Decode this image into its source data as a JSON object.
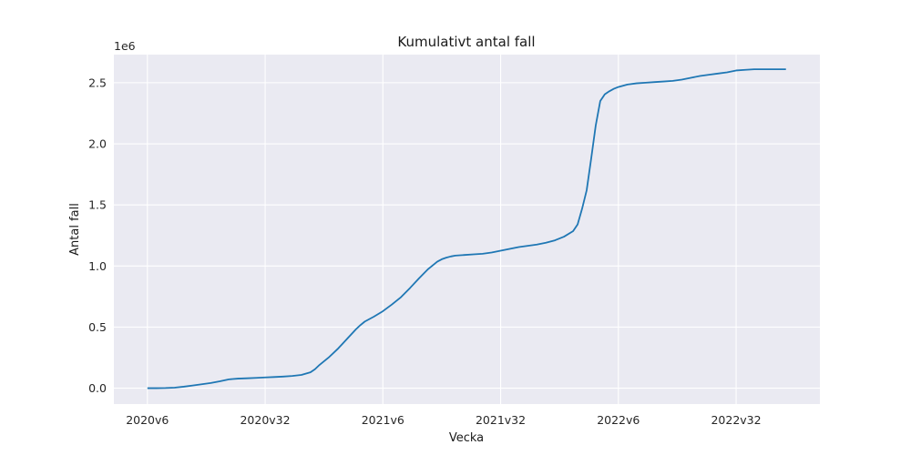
{
  "chart_data": {
    "type": "line",
    "title": "Kumulativt antal fall",
    "xlabel": "Vecka",
    "ylabel": "Antal fall",
    "y_scale_label": "1e6",
    "y_multiplier": 1000000,
    "x_ticks": [
      {
        "label": "2020v6",
        "week_index": 0
      },
      {
        "label": "2020v32",
        "week_index": 26
      },
      {
        "label": "2021v6",
        "week_index": 52
      },
      {
        "label": "2021v32",
        "week_index": 78
      },
      {
        "label": "2022v6",
        "week_index": 104
      },
      {
        "label": "2022v32",
        "week_index": 130
      }
    ],
    "y_ticks": [
      0.0,
      0.5,
      1.0,
      1.5,
      2.0,
      2.5
    ],
    "y_tick_labels": [
      "0.0",
      "0.5",
      "1.0",
      "1.5",
      "2.0",
      "2.5"
    ],
    "xlim": [
      -7.4,
      148.5
    ],
    "ylim": [
      -0.13,
      2.73
    ],
    "grid": true,
    "legend": "none",
    "line_color": "#1f77b4",
    "background_color": "#eaeaf2",
    "series": [
      {
        "x": [
          0,
          2,
          4,
          6,
          8,
          10,
          12,
          14,
          16,
          18,
          20,
          22,
          24,
          26,
          28,
          30,
          32,
          34,
          36,
          37,
          38,
          40,
          42,
          43,
          44,
          45,
          46,
          47,
          48,
          50,
          52,
          54,
          56,
          58,
          60,
          62,
          64,
          65,
          66,
          67,
          68,
          70,
          72,
          74,
          76,
          78,
          80,
          82,
          84,
          86,
          88,
          90,
          92,
          94,
          95,
          96,
          97,
          98,
          99,
          100,
          101,
          102,
          103,
          104,
          105,
          106,
          108,
          110,
          112,
          114,
          116,
          118,
          120,
          122,
          124,
          126,
          128,
          130,
          132,
          134,
          136,
          137,
          138,
          140,
          141
        ],
        "y": [
          0.0,
          0.0,
          0.001,
          0.004,
          0.012,
          0.022,
          0.032,
          0.042,
          0.056,
          0.072,
          0.078,
          0.081,
          0.084,
          0.088,
          0.091,
          0.095,
          0.1,
          0.108,
          0.13,
          0.155,
          0.19,
          0.25,
          0.32,
          0.36,
          0.4,
          0.44,
          0.48,
          0.515,
          0.545,
          0.585,
          0.63,
          0.685,
          0.745,
          0.82,
          0.9,
          0.975,
          1.035,
          1.055,
          1.068,
          1.078,
          1.085,
          1.09,
          1.095,
          1.1,
          1.11,
          1.125,
          1.14,
          1.155,
          1.165,
          1.175,
          1.19,
          1.21,
          1.24,
          1.285,
          1.34,
          1.47,
          1.62,
          1.88,
          2.15,
          2.35,
          2.405,
          2.43,
          2.45,
          2.465,
          2.475,
          2.485,
          2.495,
          2.5,
          2.505,
          2.51,
          2.515,
          2.525,
          2.54,
          2.555,
          2.565,
          2.575,
          2.585,
          2.6,
          2.605,
          2.61,
          2.61,
          2.61,
          2.61,
          2.61,
          2.61
        ]
      }
    ]
  }
}
